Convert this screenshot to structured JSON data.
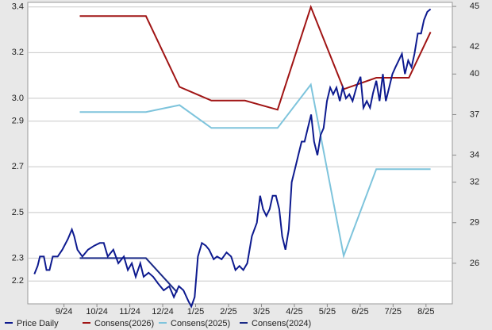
{
  "chart_data": {
    "type": "line",
    "xlim": [
      -1.1,
      11.8
    ],
    "xticks": [
      {
        "value": 0,
        "label": "9/24"
      },
      {
        "value": 1,
        "label": "10/24"
      },
      {
        "value": 2,
        "label": "11/24"
      },
      {
        "value": 3,
        "label": "12/24"
      },
      {
        "value": 4,
        "label": "1/25"
      },
      {
        "value": 5,
        "label": "2/25"
      },
      {
        "value": 6,
        "label": "3/25"
      },
      {
        "value": 7,
        "label": "4/25"
      },
      {
        "value": 8,
        "label": "5/25"
      },
      {
        "value": 9,
        "label": "6/25"
      },
      {
        "value": 10,
        "label": "7/25"
      },
      {
        "value": 11,
        "label": "8/25"
      }
    ],
    "ylim": [
      2.1,
      3.42
    ],
    "yticks": [
      3.4,
      3.2,
      {
        "value": 3.0,
        "label": "3.0"
      },
      2.9,
      2.7,
      2.5,
      2.3,
      2.2
    ],
    "y2lim": [
      23,
      45.3
    ],
    "y2ticks": [
      45,
      42,
      40,
      37,
      34,
      32,
      29,
      26
    ],
    "grid": true,
    "legend": "bottom",
    "series": [
      {
        "name": "Price Daily",
        "color": "#0d1a8f",
        "axis": "y2",
        "x": [
          -0.9,
          -0.8,
          -0.73,
          -0.61,
          -0.53,
          -0.44,
          -0.34,
          -0.19,
          -0.05,
          0.12,
          0.24,
          0.31,
          0.41,
          0.56,
          0.73,
          0.92,
          1.09,
          1.21,
          1.33,
          1.5,
          1.65,
          1.82,
          1.94,
          2.06,
          2.18,
          2.32,
          2.42,
          2.57,
          2.71,
          2.86,
          3.03,
          3.2,
          3.34,
          3.49,
          3.63,
          3.78,
          3.87,
          3.97,
          4.07,
          4.19,
          4.31,
          4.41,
          4.55,
          4.65,
          4.79,
          4.94,
          5.08,
          5.21,
          5.33,
          5.45,
          5.57,
          5.71,
          5.86,
          5.96,
          6.05,
          6.15,
          6.25,
          6.34,
          6.44,
          6.54,
          6.63,
          6.73,
          6.83,
          6.92,
          7.02,
          7.12,
          7.22,
          7.31,
          7.41,
          7.51,
          7.6,
          7.7,
          7.8,
          7.89,
          7.99,
          8.09,
          8.18,
          8.28,
          8.38,
          8.47,
          8.57,
          8.67,
          8.77,
          8.91,
          9.01,
          9.1,
          9.2,
          9.3,
          9.39,
          9.49,
          9.59,
          9.69,
          9.78,
          9.88,
          9.98,
          10.07,
          10.17,
          10.27,
          10.36,
          10.46,
          10.56,
          10.65,
          10.75,
          10.85,
          10.94,
          11.04,
          11.14
        ],
        "values": [
          25.2,
          25.8,
          26.5,
          26.5,
          25.5,
          25.5,
          26.5,
          26.5,
          27.0,
          27.8,
          28.5,
          28,
          27,
          26.5,
          27,
          27.3,
          27.5,
          27.5,
          26.5,
          27,
          26.0,
          26.5,
          25.5,
          26,
          25,
          26,
          25,
          25.3,
          25,
          24.5,
          24.0,
          24.3,
          23.5,
          24.3,
          24,
          23.2,
          22.8,
          23.5,
          26.5,
          27.5,
          27.3,
          27,
          26.3,
          26.5,
          26.3,
          26.8,
          26.5,
          25.5,
          25.8,
          25.5,
          26,
          28,
          29,
          31,
          30,
          29.5,
          30,
          31,
          31,
          30,
          28,
          27,
          28.5,
          32,
          33,
          34,
          35,
          35,
          36,
          37,
          35,
          34,
          35.5,
          36,
          38,
          39,
          38.5,
          39,
          38,
          39,
          38.2,
          38.5,
          38,
          39.2,
          39.8,
          37.5,
          38,
          37.5,
          38.6,
          39.5,
          38,
          40,
          38,
          39,
          40,
          40.5,
          41,
          41.5,
          40,
          41,
          40.5,
          41.5,
          43,
          43,
          44,
          44.6,
          44.8
        ]
      },
      {
        "name": "Consens(2026)",
        "color": "#a01414",
        "x": [
          0.48,
          2.49,
          3.51,
          4.48,
          5.5,
          6.49,
          7.5,
          8.5,
          9.49,
          10.48,
          11.14
        ],
        "values": [
          3.36,
          3.36,
          3.05,
          2.99,
          2.99,
          2.95,
          3.4,
          3.04,
          3.09,
          3.09,
          3.29
        ]
      },
      {
        "name": "Consens(2025)",
        "color": "#7ec4dc",
        "x": [
          0.48,
          2.49,
          3.51,
          4.48,
          5.5,
          6.49,
          7.5,
          8.5,
          9.49,
          10.48,
          11.14
        ],
        "values": [
          2.94,
          2.94,
          2.97,
          2.87,
          2.87,
          2.87,
          3.06,
          2.31,
          2.69,
          2.69,
          2.69
        ]
      },
      {
        "name": "Consens(2024)",
        "color": "#1a2a86",
        "x": [
          0.48,
          2.49,
          3.44
        ],
        "values": [
          2.3,
          2.3,
          2.15
        ]
      }
    ]
  }
}
